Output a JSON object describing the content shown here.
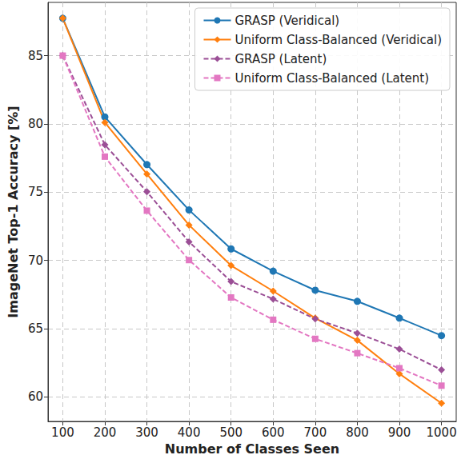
{
  "chart_data": {
    "type": "line",
    "x_label": "Number of Classes Seen",
    "y_label": "ImageNet Top-1 Accuracy [%]",
    "x": [
      100,
      200,
      300,
      400,
      500,
      600,
      700,
      800,
      900,
      1000
    ],
    "xlim": [
      65,
      1035
    ],
    "xticks": [
      100,
      200,
      300,
      400,
      500,
      600,
      700,
      800,
      900,
      1000
    ],
    "ylim": [
      58.2,
      88.9
    ],
    "yticks": [
      60,
      65,
      70,
      75,
      80,
      85
    ],
    "grid": true,
    "legend": "upper right",
    "series": [
      {
        "name": "GRASP (Veridical)",
        "color": "#1f77b4",
        "marker": "circle",
        "line_style": "solid",
        "values": [
          87.74,
          80.51,
          77.02,
          73.69,
          70.84,
          69.21,
          67.81,
          67.0,
          65.77,
          64.49
        ]
      },
      {
        "name": "Uniform Class-Balanced (Veridical)",
        "color": "#ff7f0e",
        "marker": "diamond",
        "line_style": "solid",
        "values": [
          87.74,
          80.1,
          76.32,
          72.59,
          69.62,
          67.75,
          65.77,
          64.14,
          61.69,
          59.53
        ]
      },
      {
        "name": "GRASP (Latent)",
        "color": "#9b4f96",
        "marker": "diamond",
        "line_style": "dashed",
        "values": [
          85.0,
          78.47,
          75.03,
          71.36,
          68.45,
          67.17,
          65.71,
          64.66,
          63.5,
          61.98
        ]
      },
      {
        "name": "Uniform Class-Balanced (Latent)",
        "color": "#e377c2",
        "marker": "square",
        "line_style": "dashed",
        "values": [
          85.0,
          77.6,
          73.64,
          70.02,
          67.28,
          65.65,
          64.25,
          63.2,
          62.1,
          60.82
        ]
      }
    ]
  }
}
